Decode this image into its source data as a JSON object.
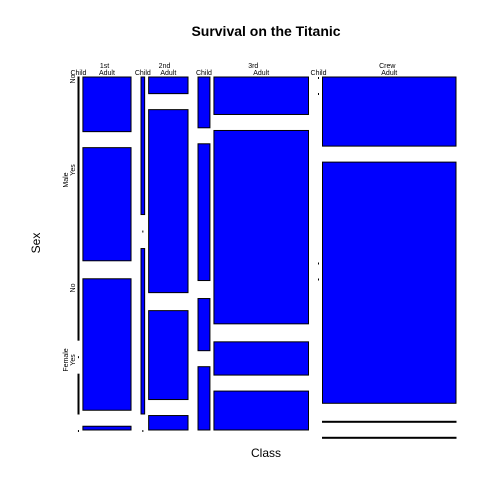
{
  "chart_data": {
    "type": "mosaic",
    "title": "Survival on the Titanic",
    "xlabel": "Class",
    "ylabel": "Sex",
    "tile_color": "#0000ff",
    "outline_color": "#000000",
    "dimensions": {
      "Class": [
        "1st",
        "2nd",
        "3rd",
        "Crew"
      ],
      "Age": [
        "Child",
        "Adult"
      ],
      "Sex": [
        "Male",
        "Female"
      ],
      "Survived": [
        "No",
        "Yes"
      ]
    },
    "row_labels": [
      {
        "sex": "Male",
        "survived": "Yes"
      },
      {
        "sex": "Male",
        "survived": "No"
      },
      {
        "sex": "Female",
        "survived": "Yes"
      },
      {
        "sex": "Female",
        "survived": "No"
      }
    ],
    "counts": [
      {
        "class": "1st",
        "age": "Child",
        "sex": "Male",
        "survived": "No",
        "count": 0
      },
      {
        "class": "1st",
        "age": "Child",
        "sex": "Male",
        "survived": "Yes",
        "count": 5
      },
      {
        "class": "1st",
        "age": "Child",
        "sex": "Female",
        "survived": "No",
        "count": 0
      },
      {
        "class": "1st",
        "age": "Child",
        "sex": "Female",
        "survived": "Yes",
        "count": 1
      },
      {
        "class": "1st",
        "age": "Adult",
        "sex": "Male",
        "survived": "No",
        "count": 118
      },
      {
        "class": "1st",
        "age": "Adult",
        "sex": "Male",
        "survived": "Yes",
        "count": 57
      },
      {
        "class": "1st",
        "age": "Adult",
        "sex": "Female",
        "survived": "No",
        "count": 4
      },
      {
        "class": "1st",
        "age": "Adult",
        "sex": "Female",
        "survived": "Yes",
        "count": 140
      },
      {
        "class": "2nd",
        "age": "Child",
        "sex": "Male",
        "survived": "No",
        "count": 0
      },
      {
        "class": "2nd",
        "age": "Child",
        "sex": "Male",
        "survived": "Yes",
        "count": 11
      },
      {
        "class": "2nd",
        "age": "Child",
        "sex": "Female",
        "survived": "No",
        "count": 0
      },
      {
        "class": "2nd",
        "age": "Child",
        "sex": "Female",
        "survived": "Yes",
        "count": 13
      },
      {
        "class": "2nd",
        "age": "Adult",
        "sex": "Male",
        "survived": "No",
        "count": 154
      },
      {
        "class": "2nd",
        "age": "Adult",
        "sex": "Male",
        "survived": "Yes",
        "count": 14
      },
      {
        "class": "2nd",
        "age": "Adult",
        "sex": "Female",
        "survived": "No",
        "count": 13
      },
      {
        "class": "2nd",
        "age": "Adult",
        "sex": "Female",
        "survived": "Yes",
        "count": 80
      },
      {
        "class": "3rd",
        "age": "Child",
        "sex": "Male",
        "survived": "No",
        "count": 35
      },
      {
        "class": "3rd",
        "age": "Child",
        "sex": "Male",
        "survived": "Yes",
        "count": 13
      },
      {
        "class": "3rd",
        "age": "Child",
        "sex": "Female",
        "survived": "No",
        "count": 17
      },
      {
        "class": "3rd",
        "age": "Child",
        "sex": "Female",
        "survived": "Yes",
        "count": 14
      },
      {
        "class": "3rd",
        "age": "Adult",
        "sex": "Male",
        "survived": "No",
        "count": 387
      },
      {
        "class": "3rd",
        "age": "Adult",
        "sex": "Male",
        "survived": "Yes",
        "count": 75
      },
      {
        "class": "3rd",
        "age": "Adult",
        "sex": "Female",
        "survived": "No",
        "count": 89
      },
      {
        "class": "3rd",
        "age": "Adult",
        "sex": "Female",
        "survived": "Yes",
        "count": 76
      },
      {
        "class": "Crew",
        "age": "Child",
        "sex": "Male",
        "survived": "No",
        "count": 0
      },
      {
        "class": "Crew",
        "age": "Child",
        "sex": "Male",
        "survived": "Yes",
        "count": 0
      },
      {
        "class": "Crew",
        "age": "Child",
        "sex": "Female",
        "survived": "No",
        "count": 0
      },
      {
        "class": "Crew",
        "age": "Child",
        "sex": "Female",
        "survived": "Yes",
        "count": 0
      },
      {
        "class": "Crew",
        "age": "Adult",
        "sex": "Male",
        "survived": "No",
        "count": 670
      },
      {
        "class": "Crew",
        "age": "Adult",
        "sex": "Male",
        "survived": "Yes",
        "count": 192
      },
      {
        "class": "Crew",
        "age": "Adult",
        "sex": "Female",
        "survived": "No",
        "count": 3
      },
      {
        "class": "Crew",
        "age": "Adult",
        "sex": "Female",
        "survived": "Yes",
        "count": 20
      }
    ]
  }
}
